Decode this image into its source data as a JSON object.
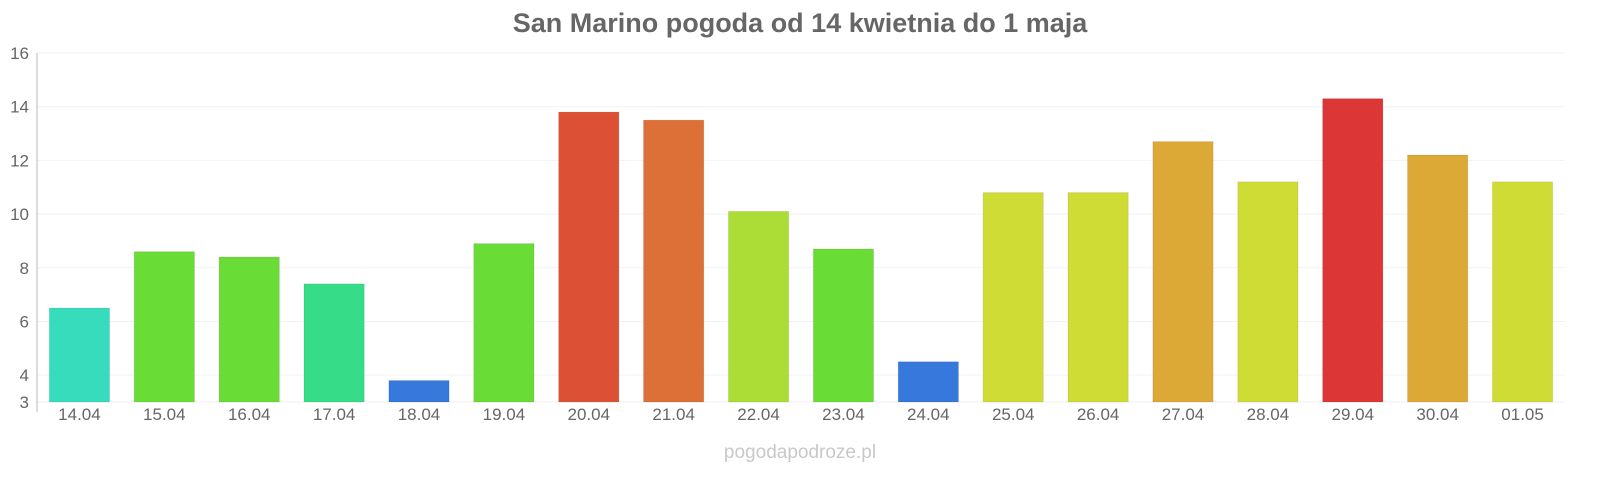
{
  "chart_data": {
    "type": "bar",
    "title": "San Marino pogoda od 14 kwietnia do 1 maja",
    "xlabel": "",
    "ylabel": "",
    "ylim": [
      3,
      16
    ],
    "yticks": [
      3,
      4,
      6,
      8,
      10,
      12,
      14,
      16
    ],
    "grid": true,
    "categories": [
      "14.04",
      "15.04",
      "16.04",
      "17.04",
      "18.04",
      "19.04",
      "20.04",
      "21.04",
      "22.04",
      "23.04",
      "24.04",
      "25.04",
      "26.04",
      "27.04",
      "28.04",
      "29.04",
      "30.04",
      "01.05"
    ],
    "values": [
      6.5,
      8.6,
      8.4,
      7.4,
      3.8,
      8.9,
      13.8,
      13.5,
      10.1,
      8.7,
      4.5,
      10.8,
      10.8,
      12.7,
      11.2,
      14.3,
      12.2,
      11.2
    ],
    "colors": [
      "#36dcbc",
      "#6adc36",
      "#6adc36",
      "#36dc88",
      "#3678dc",
      "#6adc36",
      "#dc5036",
      "#dc7036",
      "#acdc36",
      "#6adc36",
      "#3678dc",
      "#cfdc36",
      "#cfdc36",
      "#dca836",
      "#cfdc36",
      "#dc3636",
      "#dca836",
      "#cfdc36"
    ]
  },
  "footer": "pogodapodroze.pl"
}
